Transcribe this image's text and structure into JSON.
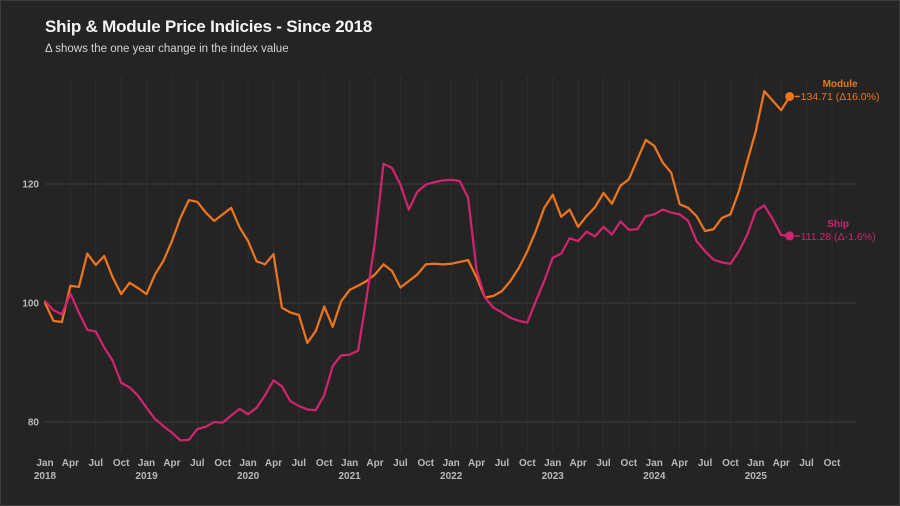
{
  "title": "Ship & Module Price Indicies - Since 2018",
  "subtitle": "Δ shows the one year change in the index value",
  "colors": {
    "background": "#242424",
    "module": "#ee751c",
    "ship": "#d0246c",
    "grid_horizontal": "#3b3b3b",
    "grid_vertical": "#2f2f2f",
    "axis_text": "#b9b9b9",
    "title_text": "#f5f5f5",
    "subtitle_text": "#d4d4d4"
  },
  "chart_data": {
    "type": "line",
    "title": "Ship & Module Price Indicies - Since 2018",
    "subtitle": "Δ shows the one year change in the index value",
    "x_start": "2018-01",
    "x_frequency": "monthly",
    "x_end": "2025-05",
    "grid": "on",
    "legend_position": "end-of-line-labels",
    "ylim": [
      72,
      140
    ],
    "yticks": [
      80,
      100,
      120
    ],
    "xticks": [
      {
        "month": "Jan",
        "year": "2018"
      },
      {
        "month": "Apr"
      },
      {
        "month": "Jul"
      },
      {
        "month": "Oct"
      },
      {
        "month": "Jan",
        "year": "2019"
      },
      {
        "month": "Apr"
      },
      {
        "month": "Jul"
      },
      {
        "month": "Oct"
      },
      {
        "month": "Jan",
        "year": "2020"
      },
      {
        "month": "Apr"
      },
      {
        "month": "Jul"
      },
      {
        "month": "Oct"
      },
      {
        "month": "Jan",
        "year": "2021"
      },
      {
        "month": "Apr"
      },
      {
        "month": "Jul"
      },
      {
        "month": "Oct"
      },
      {
        "month": "Jan",
        "year": "2022"
      },
      {
        "month": "Apr"
      },
      {
        "month": "Jul"
      },
      {
        "month": "Oct"
      },
      {
        "month": "Jan",
        "year": "2023"
      },
      {
        "month": "Apr"
      },
      {
        "month": "Jul"
      },
      {
        "month": "Oct"
      },
      {
        "month": "Jan",
        "year": "2024"
      },
      {
        "month": "Apr"
      },
      {
        "month": "Jul"
      },
      {
        "month": "Oct"
      },
      {
        "month": "Jan",
        "year": "2025"
      },
      {
        "month": "Apr"
      },
      {
        "month": "Jul"
      },
      {
        "month": "Oct"
      }
    ],
    "series": [
      {
        "name": "Module",
        "color": "#ee751c",
        "end_value": 134.71,
        "end_delta_pct": 16.0,
        "end_value_label": "134.71 (Δ16.0%)",
        "values": [
          100.0,
          97.0,
          96.8,
          102.9,
          102.7,
          108.3,
          106.4,
          107.9,
          104.3,
          101.5,
          103.4,
          102.5,
          101.5,
          104.8,
          107.1,
          110.4,
          114.3,
          117.3,
          117.0,
          115.2,
          113.8,
          114.9,
          116.0,
          112.7,
          110.4,
          107.0,
          106.5,
          108.2,
          99.2,
          98.4,
          98.0,
          93.3,
          95.3,
          99.4,
          96.0,
          100.3,
          102.2,
          102.9,
          103.7,
          104.8,
          106.5,
          105.4,
          102.6,
          103.7,
          104.8,
          106.5,
          106.6,
          106.5,
          106.6,
          106.9,
          107.2,
          104.3,
          100.9,
          101.2,
          102.0,
          103.7,
          105.9,
          108.7,
          112.1,
          116.0,
          118.2,
          114.5,
          115.7,
          112.8,
          114.6,
          116.1,
          118.5,
          116.7,
          119.7,
          120.8,
          124.1,
          127.4,
          126.4,
          123.6,
          121.9,
          116.6,
          116.0,
          114.6,
          112.1,
          112.4,
          114.3,
          114.9,
          118.8,
          123.9,
          128.9,
          135.6,
          134.0,
          132.4,
          134.71
        ]
      },
      {
        "name": "Ship",
        "color": "#d0246c",
        "end_value": 111.28,
        "end_delta_pct": -1.6,
        "end_value_label": "111.28 (Δ-1.6%)",
        "values": [
          100.3,
          98.8,
          98.1,
          101.6,
          98.4,
          95.5,
          95.2,
          92.5,
          90.3,
          86.6,
          85.8,
          84.4,
          82.4,
          80.5,
          79.3,
          78.2,
          76.9,
          77.0,
          78.8,
          79.2,
          80.0,
          79.9,
          81.1,
          82.2,
          81.3,
          82.4,
          84.5,
          87.0,
          86.0,
          83.5,
          82.7,
          82.1,
          82.0,
          84.5,
          89.4,
          91.2,
          91.3,
          92.0,
          100.9,
          110.4,
          123.4,
          122.7,
          119.9,
          115.7,
          118.7,
          119.9,
          120.3,
          120.6,
          120.7,
          120.5,
          117.7,
          105.5,
          100.9,
          99.2,
          98.4,
          97.5,
          97.0,
          96.7,
          100.3,
          103.7,
          107.6,
          108.3,
          110.9,
          110.4,
          112.0,
          111.2,
          112.8,
          111.5,
          113.7,
          112.3,
          112.4,
          114.6,
          114.9,
          115.7,
          115.2,
          114.9,
          113.8,
          110.4,
          108.7,
          107.3,
          106.8,
          106.6,
          108.7,
          111.5,
          115.5,
          116.4,
          114.1,
          111.4,
          111.28
        ]
      }
    ]
  }
}
